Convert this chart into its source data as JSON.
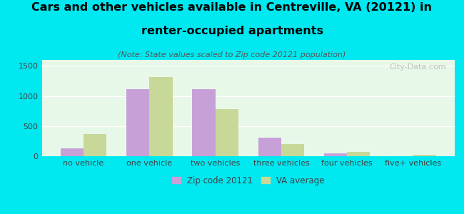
{
  "categories": [
    "no vehicle",
    "one vehicle",
    "two vehicles",
    "three vehicles",
    "four vehicles",
    "five+ vehicles"
  ],
  "zip_values": [
    130,
    1120,
    1120,
    310,
    45,
    5
  ],
  "va_values": [
    365,
    1310,
    780,
    205,
    70,
    20
  ],
  "zip_color": "#c8a0d8",
  "va_color": "#c8d898",
  "background_outer": "#00e8f0",
  "background_inner": "#e8f8e8",
  "title_line1": "Cars and other vehicles available in Centreville, VA (20121) in",
  "title_line2": "renter-occupied apartments",
  "subtitle": "(Note: State values scaled to Zip code 20121 population)",
  "ylim": [
    0,
    1600
  ],
  "yticks": [
    0,
    500,
    1000,
    1500
  ],
  "legend_zip": "Zip code 20121",
  "legend_va": "VA average",
  "watermark": "City-Data.com",
  "bar_width": 0.35,
  "title_fontsize": 11.5,
  "subtitle_fontsize": 8,
  "tick_fontsize": 8,
  "legend_fontsize": 8.5
}
